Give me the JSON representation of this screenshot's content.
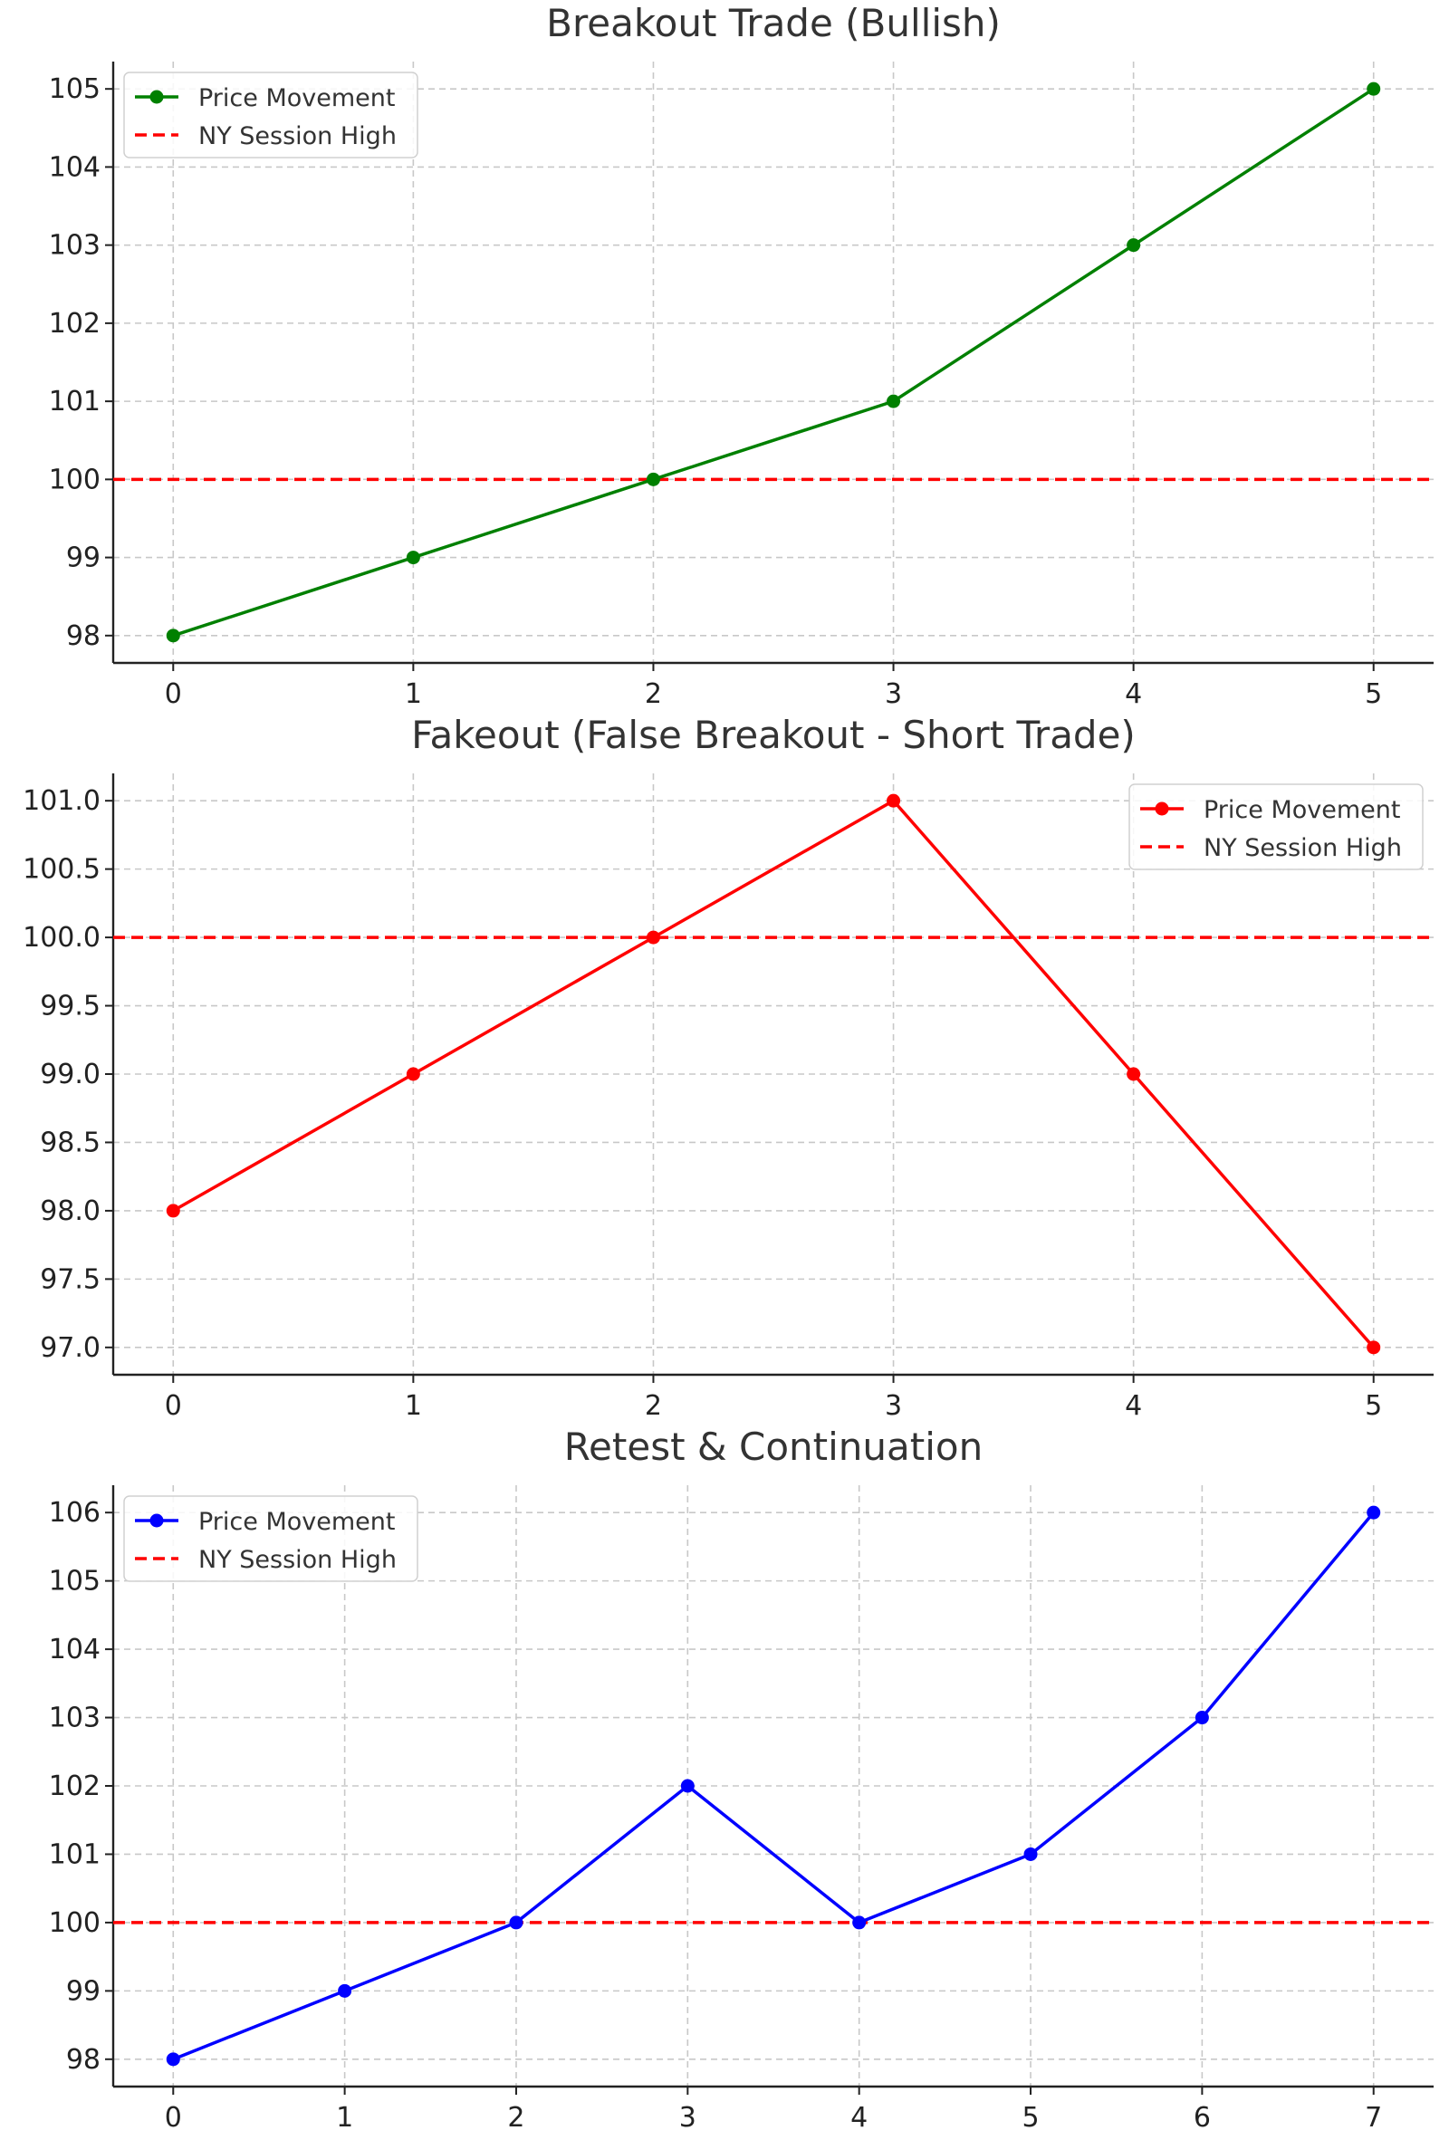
{
  "chart_data": [
    {
      "type": "line",
      "title": "Breakout Trade (Bullish)",
      "xlabel": "",
      "ylabel": "",
      "x": [
        0,
        1,
        2,
        3,
        4,
        5
      ],
      "x_ticks": [
        0,
        1,
        2,
        3,
        4,
        5
      ],
      "y_ticks": [
        "98",
        "99",
        "100",
        "101",
        "102",
        "103",
        "104",
        "105"
      ],
      "xlim": [
        -0.25,
        5.25
      ],
      "ylim": [
        97.65,
        105.35
      ],
      "grid": true,
      "legend_position": "top-left",
      "series": [
        {
          "name": "Price Movement",
          "values": [
            98,
            99,
            100,
            101,
            103,
            105
          ],
          "color": "#008000",
          "style": "solid",
          "marker": "circle"
        }
      ],
      "reference_line": {
        "name": "NY Session High",
        "y": 100,
        "color": "#ff0000",
        "style": "dashed"
      }
    },
    {
      "type": "line",
      "title": "Fakeout (False Breakout - Short Trade)",
      "xlabel": "",
      "ylabel": "",
      "x": [
        0,
        1,
        2,
        3,
        4,
        5
      ],
      "x_ticks": [
        0,
        1,
        2,
        3,
        4,
        5
      ],
      "y_ticks": [
        "97.0",
        "97.5",
        "98.0",
        "98.5",
        "99.0",
        "99.5",
        "100.0",
        "100.5",
        "101.0"
      ],
      "xlim": [
        -0.25,
        5.25
      ],
      "ylim": [
        96.8,
        101.2
      ],
      "grid": true,
      "legend_position": "top-right",
      "series": [
        {
          "name": "Price Movement",
          "values": [
            98,
            99,
            100,
            101,
            99,
            97
          ],
          "color": "#ff0000",
          "style": "solid",
          "marker": "circle"
        }
      ],
      "reference_line": {
        "name": "NY Session High",
        "y": 100,
        "color": "#ff0000",
        "style": "dashed"
      }
    },
    {
      "type": "line",
      "title": "Retest & Continuation",
      "xlabel": "",
      "ylabel": "",
      "x": [
        0,
        1,
        2,
        3,
        4,
        5,
        6,
        7
      ],
      "x_ticks": [
        0,
        1,
        2,
        3,
        4,
        5,
        6,
        7
      ],
      "y_ticks": [
        "98",
        "99",
        "100",
        "101",
        "102",
        "103",
        "104",
        "105",
        "106"
      ],
      "xlim": [
        -0.35,
        7.35
      ],
      "ylim": [
        97.6,
        106.4
      ],
      "grid": true,
      "legend_position": "top-left",
      "series": [
        {
          "name": "Price Movement",
          "values": [
            98,
            99,
            100,
            102,
            100,
            101,
            103,
            106
          ],
          "color": "#0000ff",
          "style": "solid",
          "marker": "circle"
        }
      ],
      "reference_line": {
        "name": "NY Session High",
        "y": 100,
        "color": "#ff0000",
        "style": "dashed"
      }
    }
  ]
}
